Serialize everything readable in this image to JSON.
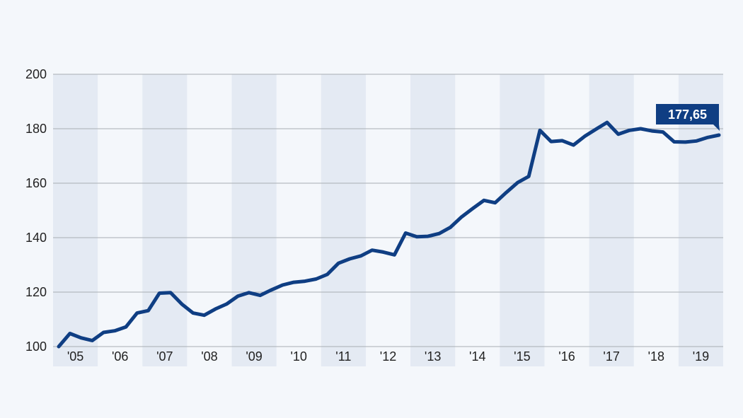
{
  "colors": {
    "background": "#f4f7fb",
    "band": "#e4eaf3",
    "grid": "#a9adb3",
    "line": "#0f3e83",
    "badge": "#0f3e83",
    "text": "#222222"
  },
  "chart_data": {
    "type": "line",
    "title": "",
    "xlabel": "",
    "ylabel": "",
    "ylim": [
      100,
      200
    ],
    "yticks": [
      100,
      120,
      140,
      160,
      180,
      200
    ],
    "grid": true,
    "x_tick_labels": [
      "'05",
      "'06",
      "'07",
      "'08",
      "'09",
      "'10",
      "'11",
      "'12",
      "'13",
      "'14",
      "'15",
      "'16",
      "'17",
      "'18",
      "'19"
    ],
    "x_start_year": 2005,
    "series": [
      {
        "values": [
          100,
          104.8,
          103.2,
          102.2,
          105.2,
          105.8,
          107.2,
          112.3,
          113.2,
          119.6,
          119.8,
          115.6,
          112.3,
          111.5,
          113.8,
          115.6,
          118.5,
          119.8,
          118.8,
          120.8,
          122.6,
          123.6,
          124.0,
          124.8,
          126.5,
          130.6,
          132.2,
          133.3,
          135.4,
          134.7,
          133.7,
          141.7,
          140.3,
          140.5,
          141.5,
          143.8,
          147.6,
          150.7,
          153.7,
          152.8,
          156.6,
          160.2,
          162.5,
          179.4,
          175.3,
          175.6,
          174.0,
          177.2,
          179.8,
          182.3,
          178.0,
          179.4,
          180.0,
          179.2,
          178.8,
          175.2,
          175.1,
          175.5,
          176.8,
          177.65
        ]
      }
    ],
    "annotation": {
      "label": "177,65",
      "value": 177.65
    }
  }
}
